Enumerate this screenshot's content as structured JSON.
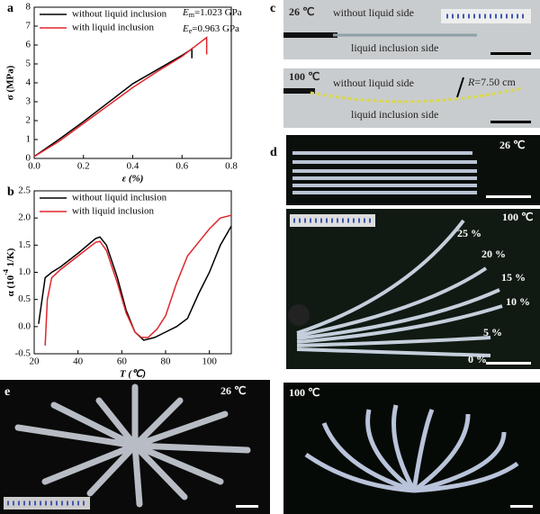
{
  "chart_data": [
    {
      "type": "line",
      "panel": "a",
      "xlabel": "ε (%)",
      "ylabel": "σ (MPa)",
      "xlim": [
        0,
        0.8
      ],
      "xticks": [
        {
          "value": 0,
          "label": "0.0"
        },
        {
          "value": 0.2,
          "label": "0.2"
        },
        {
          "value": 0.4,
          "label": "0.4"
        },
        {
          "value": 0.6,
          "label": "0.6"
        },
        {
          "value": 0.8,
          "label": "0.8"
        }
      ],
      "ylim": [
        0,
        8
      ],
      "yticks": [
        0,
        1,
        2,
        3,
        4,
        5,
        6,
        7,
        8
      ],
      "annotations": [
        {
          "symbol": "E",
          "sub": "m",
          "text": "=1.023 GPa"
        },
        {
          "symbol": "E",
          "sub": "e",
          "text": "=0.963 GPa"
        }
      ],
      "series": [
        {
          "name": "without liquid inclusion",
          "color": "#000000",
          "x": [
            0,
            0.1,
            0.2,
            0.3,
            0.4,
            0.5,
            0.6,
            0.63,
            0.64,
            0.64
          ],
          "values": [
            0.1,
            1.0,
            1.95,
            2.95,
            3.95,
            4.7,
            5.45,
            5.7,
            5.8,
            5.3
          ]
        },
        {
          "name": "with liquid inclusion",
          "color": "#e0262b",
          "x": [
            0,
            0.1,
            0.2,
            0.3,
            0.4,
            0.5,
            0.6,
            0.68,
            0.7,
            0.7
          ],
          "values": [
            0.1,
            0.9,
            1.85,
            2.8,
            3.75,
            4.6,
            5.4,
            6.2,
            6.4,
            5.5
          ]
        }
      ]
    },
    {
      "type": "line",
      "panel": "b",
      "xlabel": "T (℃)",
      "ylabel": {
        "pre": "α (10",
        "sup": "-4",
        "post": " 1/K)"
      },
      "xlim": [
        20,
        110
      ],
      "xticks": [
        20,
        40,
        60,
        80,
        100
      ],
      "ylim": [
        -0.5,
        2.5
      ],
      "yticks": [
        {
          "value": -0.5,
          "label": "-0.5"
        },
        {
          "value": 0,
          "label": "0.0"
        },
        {
          "value": 0.5,
          "label": "0.5"
        },
        {
          "value": 1,
          "label": "1.0"
        },
        {
          "value": 1.5,
          "label": "1.5"
        },
        {
          "value": 2,
          "label": "2.0"
        },
        {
          "value": 2.5,
          "label": "2.5"
        }
      ],
      "series": [
        {
          "name": "without liquid inclusion",
          "color": "#000000",
          "x": [
            22,
            25,
            28,
            32,
            40,
            48,
            50,
            53,
            58,
            62,
            66,
            70,
            75,
            80,
            85,
            90,
            95,
            100,
            105,
            110
          ],
          "values": [
            0.05,
            0.9,
            1.0,
            1.1,
            1.35,
            1.62,
            1.65,
            1.5,
            0.9,
            0.3,
            -0.1,
            -0.25,
            -0.2,
            -0.1,
            0.0,
            0.15,
            0.6,
            1.0,
            1.5,
            1.85
          ]
        },
        {
          "name": "with liquid inclusion",
          "color": "#e0262b",
          "x": [
            25,
            26,
            28,
            32,
            40,
            48,
            50,
            53,
            58,
            62,
            66,
            69,
            72,
            76,
            80,
            85,
            90,
            95,
            100,
            105,
            110
          ],
          "values": [
            -0.35,
            0.5,
            0.9,
            1.05,
            1.3,
            1.55,
            1.57,
            1.4,
            0.8,
            0.25,
            -0.1,
            -0.2,
            -0.2,
            -0.05,
            0.2,
            0.8,
            1.3,
            1.55,
            1.8,
            2.0,
            2.05
          ]
        }
      ]
    }
  ],
  "photos": {
    "c": {
      "label": "c",
      "top_temp": "26 ℃",
      "bottom_temp": "100 ℃",
      "upper_side": "without liquid side",
      "lower_side": "liquid inclusion side",
      "upper_side_2": "without liquid side",
      "lower_side_2": "liquid inclusion side",
      "radius": {
        "symbol": "R",
        "text": "=7.50 cm"
      }
    },
    "d": {
      "label": "d",
      "top_temp": "26 ℃",
      "bottom_temp": "100 ℃",
      "percents": [
        "25 %",
        "20 %",
        "15 %",
        "10 %",
        "5 %",
        "0 %"
      ]
    },
    "e": {
      "label": "e",
      "left_temp": "26 ℃",
      "right_temp": "100 ℃"
    }
  }
}
